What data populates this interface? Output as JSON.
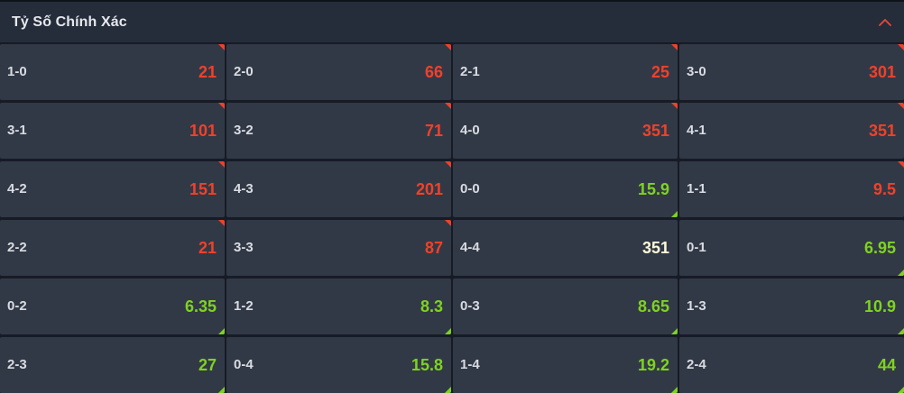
{
  "header": {
    "title": "Tỷ Số Chính Xác",
    "collapse_icon": "chevron-up-icon"
  },
  "colors": {
    "down": "#f0412a",
    "up": "#7ed321",
    "neutral": "#fffbd6"
  },
  "cells": [
    {
      "score": "1-0",
      "odds": "21",
      "trend": "down"
    },
    {
      "score": "2-0",
      "odds": "66",
      "trend": "down"
    },
    {
      "score": "2-1",
      "odds": "25",
      "trend": "down"
    },
    {
      "score": "3-0",
      "odds": "301",
      "trend": "down"
    },
    {
      "score": "3-1",
      "odds": "101",
      "trend": "down"
    },
    {
      "score": "3-2",
      "odds": "71",
      "trend": "down"
    },
    {
      "score": "4-0",
      "odds": "351",
      "trend": "down"
    },
    {
      "score": "4-1",
      "odds": "351",
      "trend": "down"
    },
    {
      "score": "4-2",
      "odds": "151",
      "trend": "down"
    },
    {
      "score": "4-3",
      "odds": "201",
      "trend": "down"
    },
    {
      "score": "0-0",
      "odds": "15.9",
      "trend": "up"
    },
    {
      "score": "1-1",
      "odds": "9.5",
      "trend": "down"
    },
    {
      "score": "2-2",
      "odds": "21",
      "trend": "down"
    },
    {
      "score": "3-3",
      "odds": "87",
      "trend": "down"
    },
    {
      "score": "4-4",
      "odds": "351",
      "trend": "neutral"
    },
    {
      "score": "0-1",
      "odds": "6.95",
      "trend": "up"
    },
    {
      "score": "0-2",
      "odds": "6.35",
      "trend": "up"
    },
    {
      "score": "1-2",
      "odds": "8.3",
      "trend": "up"
    },
    {
      "score": "0-3",
      "odds": "8.65",
      "trend": "up"
    },
    {
      "score": "1-3",
      "odds": "10.9",
      "trend": "up"
    },
    {
      "score": "2-3",
      "odds": "27",
      "trend": "up"
    },
    {
      "score": "0-4",
      "odds": "15.8",
      "trend": "up"
    },
    {
      "score": "1-4",
      "odds": "19.2",
      "trend": "up"
    },
    {
      "score": "2-4",
      "odds": "44",
      "trend": "up"
    }
  ]
}
